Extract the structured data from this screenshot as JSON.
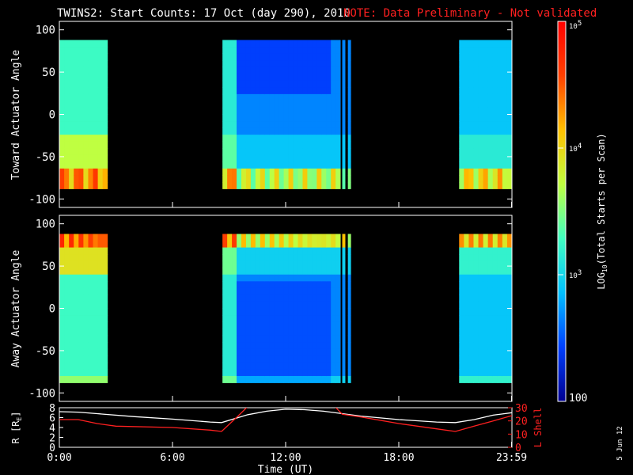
{
  "title": {
    "main": "TWINS2: Start Counts: 17 Oct (day 290), 2010",
    "note": "NOTE: Data Preliminary - Not validated",
    "note_color": "#ff2020"
  },
  "stamp": "5 Jun 12",
  "chart_data": [
    {
      "type": "heatmap",
      "panel": "toward",
      "ylabel": "Toward Actuator Angle",
      "ylim": [
        -110,
        110
      ],
      "yticks": [
        100,
        50,
        0,
        -50,
        -100
      ],
      "angle_range": [
        -88,
        88
      ],
      "segments": [
        {
          "start_hr": 0.0,
          "end_hr": 2.55
        },
        {
          "start_hr": 8.65,
          "end_hr": 14.9
        },
        {
          "start_hr": 15.0,
          "end_hr": 15.15
        },
        {
          "start_hr": 15.3,
          "end_hr": 15.45
        },
        {
          "start_hr": 21.2,
          "end_hr": 24.0
        }
      ]
    },
    {
      "type": "heatmap",
      "panel": "away",
      "ylabel": "Away Actuator Angle",
      "ylim": [
        -110,
        110
      ],
      "yticks": [
        100,
        50,
        0,
        -50,
        -100
      ],
      "angle_range": [
        -88,
        88
      ],
      "segments": [
        {
          "start_hr": 0.0,
          "end_hr": 2.55
        },
        {
          "start_hr": 8.65,
          "end_hr": 14.9
        },
        {
          "start_hr": 15.0,
          "end_hr": 15.15
        },
        {
          "start_hr": 15.3,
          "end_hr": 15.45
        },
        {
          "start_hr": 21.2,
          "end_hr": 24.0
        }
      ]
    },
    {
      "type": "line",
      "panel": "orbit",
      "ylabel": "R [R",
      "ylabel_sub": "E",
      "ylabel_end": "]",
      "ylabel2": "L Shell",
      "ylim": [
        0,
        8
      ],
      "yticks": [
        0,
        2,
        4,
        6,
        8
      ],
      "ylim2": [
        0,
        30
      ],
      "yticks2": [
        0,
        10,
        20,
        30
      ],
      "xlabel": "Time (UT)",
      "xlim": [
        0,
        24
      ],
      "xticks": [
        "0:00",
        "6:00",
        "12:00",
        "18:00",
        "23:59"
      ],
      "xtick_hours": [
        0,
        6,
        12,
        18,
        23.98
      ],
      "series": [
        {
          "color": "#ffffff",
          "x": [
            0,
            1,
            2,
            4,
            6,
            8,
            8.6,
            10,
            11,
            12,
            13,
            14,
            15,
            16,
            18,
            20,
            21,
            22,
            23,
            24
          ],
          "y": [
            7.2,
            7.1,
            6.8,
            6.2,
            5.7,
            5.1,
            5.0,
            6.6,
            7.3,
            7.7,
            7.6,
            7.3,
            6.8,
            6.3,
            5.6,
            5.1,
            5.0,
            5.6,
            6.5,
            7.0
          ]
        },
        {
          "color": "#ff2020",
          "axis": "right",
          "x": [
            0,
            1,
            2,
            3,
            6,
            8,
            8.6,
            9.5,
            10
          ],
          "y": [
            21,
            21,
            18,
            16,
            15,
            13,
            12,
            24,
            31
          ]
        },
        {
          "color": "#ff2020",
          "axis": "right",
          "x": [
            14.6,
            15,
            16,
            18,
            20,
            21,
            22,
            23,
            24
          ],
          "y": [
            31,
            25,
            23,
            18,
            14,
            12,
            16,
            20,
            24
          ]
        }
      ]
    }
  ],
  "colorbar": {
    "label_pre": "LOG",
    "label_sub": "10",
    "label_post": "(Total Starts per Scan)",
    "min_value": 100,
    "max_value": 100000,
    "ticks": [
      {
        "value": 100,
        "label": "100"
      },
      {
        "value": 1000,
        "label": "10",
        "sup": "3"
      },
      {
        "value": 10000,
        "label": "10",
        "sup": "4"
      },
      {
        "value": 100000,
        "label": "10",
        "sup": "5"
      }
    ],
    "stops": [
      "#000090",
      "#0040ff",
      "#00c0ff",
      "#40ffc0",
      "#c0ff40",
      "#ffc000",
      "#ff4000",
      "#ff0000"
    ]
  }
}
